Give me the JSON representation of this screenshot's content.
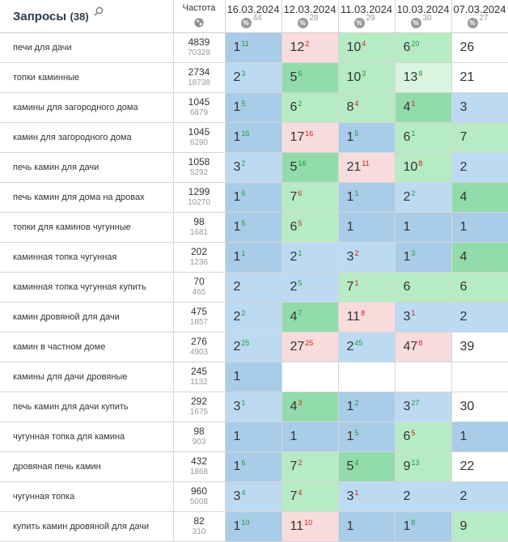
{
  "header": {
    "queries_title": "Запросы",
    "queries_count": "(38)",
    "freq_label": "Частота",
    "pct_symbol": "%"
  },
  "dates": [
    {
      "label": "16.03.2024",
      "count": "44"
    },
    {
      "label": "12.03.2024",
      "count": "28"
    },
    {
      "label": "11.03.2024",
      "count": "29"
    },
    {
      "label": "10.03.2024",
      "count": "30"
    },
    {
      "label": "07.03.2024",
      "count": "27"
    }
  ],
  "colors": {
    "pos_1": "#a9cce9",
    "pos_2_3": "#bcdaf2",
    "pos_4_5": "#91dcaa",
    "pos_6_10": "#b6ebc4",
    "pos_11_20": "#d9f5e0",
    "pos_worse": "#f8dcdc",
    "change_up": "#1e9b3c",
    "change_down": "#d4231b"
  },
  "rows": [
    {
      "query": "печи для дачи",
      "freq": "4839",
      "freq_exact": "70329",
      "cells": [
        {
          "pos": "1",
          "chg": "11",
          "dir": "up",
          "bg": "top1"
        },
        {
          "pos": "12",
          "chg": "2",
          "dir": "down",
          "bg": "out"
        },
        {
          "pos": "10",
          "chg": "4",
          "dir": "down",
          "bg": "top10"
        },
        {
          "pos": "6",
          "chg": "20",
          "dir": "up",
          "bg": "top10"
        },
        {
          "pos": "26",
          "chg": "",
          "dir": "",
          "bg": "none"
        }
      ]
    },
    {
      "query": "топки каминные",
      "freq": "2734",
      "freq_exact": "18738",
      "cells": [
        {
          "pos": "2",
          "chg": "3",
          "dir": "up",
          "bg": "top3"
        },
        {
          "pos": "5",
          "chg": "5",
          "dir": "up",
          "bg": "top5"
        },
        {
          "pos": "10",
          "chg": "3",
          "dir": "up",
          "bg": "top10"
        },
        {
          "pos": "13",
          "chg": "8",
          "dir": "up",
          "bg": "top20"
        },
        {
          "pos": "21",
          "chg": "",
          "dir": "",
          "bg": "none"
        }
      ]
    },
    {
      "query": "камины для загородного дома",
      "freq": "1045",
      "freq_exact": "6879",
      "cells": [
        {
          "pos": "1",
          "chg": "5",
          "dir": "up",
          "bg": "top1"
        },
        {
          "pos": "6",
          "chg": "2",
          "dir": "up",
          "bg": "top10"
        },
        {
          "pos": "8",
          "chg": "4",
          "dir": "down",
          "bg": "top10"
        },
        {
          "pos": "4",
          "chg": "1",
          "dir": "down",
          "bg": "top5"
        },
        {
          "pos": "3",
          "chg": "",
          "dir": "",
          "bg": "top3"
        }
      ]
    },
    {
      "query": "камин для загородного дома",
      "freq": "1045",
      "freq_exact": "6290",
      "cells": [
        {
          "pos": "1",
          "chg": "16",
          "dir": "up",
          "bg": "top1"
        },
        {
          "pos": "17",
          "chg": "16",
          "dir": "down",
          "bg": "out"
        },
        {
          "pos": "1",
          "chg": "5",
          "dir": "up",
          "bg": "top1"
        },
        {
          "pos": "6",
          "chg": "1",
          "dir": "up",
          "bg": "top10"
        },
        {
          "pos": "7",
          "chg": "",
          "dir": "",
          "bg": "top10"
        }
      ]
    },
    {
      "query": "печь камин для дачи",
      "freq": "1058",
      "freq_exact": "5292",
      "cells": [
        {
          "pos": "3",
          "chg": "2",
          "dir": "up",
          "bg": "top3"
        },
        {
          "pos": "5",
          "chg": "16",
          "dir": "up",
          "bg": "top5"
        },
        {
          "pos": "21",
          "chg": "11",
          "dir": "down",
          "bg": "out"
        },
        {
          "pos": "10",
          "chg": "8",
          "dir": "down",
          "bg": "top10"
        },
        {
          "pos": "2",
          "chg": "",
          "dir": "",
          "bg": "top3"
        }
      ]
    },
    {
      "query": "печь камин для дома на дровах",
      "freq": "1299",
      "freq_exact": "10270",
      "cells": [
        {
          "pos": "1",
          "chg": "6",
          "dir": "up",
          "bg": "top1"
        },
        {
          "pos": "7",
          "chg": "6",
          "dir": "down",
          "bg": "top10"
        },
        {
          "pos": "1",
          "chg": "1",
          "dir": "up",
          "bg": "top1"
        },
        {
          "pos": "2",
          "chg": "2",
          "dir": "up",
          "bg": "top3"
        },
        {
          "pos": "4",
          "chg": "",
          "dir": "",
          "bg": "top5"
        }
      ]
    },
    {
      "query": "топки для каминов чугунные",
      "freq": "98",
      "freq_exact": "1681",
      "cells": [
        {
          "pos": "1",
          "chg": "5",
          "dir": "up",
          "bg": "top1"
        },
        {
          "pos": "6",
          "chg": "5",
          "dir": "down",
          "bg": "top10"
        },
        {
          "pos": "1",
          "chg": "",
          "dir": "",
          "bg": "top1"
        },
        {
          "pos": "1",
          "chg": "",
          "dir": "",
          "bg": "top1"
        },
        {
          "pos": "1",
          "chg": "",
          "dir": "",
          "bg": "top1"
        }
      ]
    },
    {
      "query": "каминная топка чугунная",
      "freq": "202",
      "freq_exact": "1236",
      "cells": [
        {
          "pos": "1",
          "chg": "1",
          "dir": "up",
          "bg": "top1"
        },
        {
          "pos": "2",
          "chg": "1",
          "dir": "up",
          "bg": "top3"
        },
        {
          "pos": "3",
          "chg": "2",
          "dir": "down",
          "bg": "top3"
        },
        {
          "pos": "1",
          "chg": "3",
          "dir": "up",
          "bg": "top1"
        },
        {
          "pos": "4",
          "chg": "",
          "dir": "",
          "bg": "top5"
        }
      ]
    },
    {
      "query": "каминная топка чугунная купить",
      "freq": "70",
      "freq_exact": "465",
      "cells": [
        {
          "pos": "2",
          "chg": "",
          "dir": "",
          "bg": "top3"
        },
        {
          "pos": "2",
          "chg": "5",
          "dir": "up",
          "bg": "top3"
        },
        {
          "pos": "7",
          "chg": "1",
          "dir": "down",
          "bg": "top10"
        },
        {
          "pos": "6",
          "chg": "",
          "dir": "",
          "bg": "top10"
        },
        {
          "pos": "6",
          "chg": "",
          "dir": "",
          "bg": "top10"
        }
      ]
    },
    {
      "query": "камин дровяной для дачи",
      "freq": "475",
      "freq_exact": "1857",
      "cells": [
        {
          "pos": "2",
          "chg": "2",
          "dir": "up",
          "bg": "top3"
        },
        {
          "pos": "4",
          "chg": "7",
          "dir": "up",
          "bg": "top5"
        },
        {
          "pos": "11",
          "chg": "8",
          "dir": "down",
          "bg": "out"
        },
        {
          "pos": "3",
          "chg": "1",
          "dir": "down",
          "bg": "top3"
        },
        {
          "pos": "2",
          "chg": "",
          "dir": "",
          "bg": "top3"
        }
      ]
    },
    {
      "query": "камин в частном доме",
      "freq": "276",
      "freq_exact": "4903",
      "cells": [
        {
          "pos": "2",
          "chg": "25",
          "dir": "up",
          "bg": "top3"
        },
        {
          "pos": "27",
          "chg": "25",
          "dir": "down",
          "bg": "out"
        },
        {
          "pos": "2",
          "chg": "45",
          "dir": "up",
          "bg": "top3"
        },
        {
          "pos": "47",
          "chg": "8",
          "dir": "down",
          "bg": "out"
        },
        {
          "pos": "39",
          "chg": "",
          "dir": "",
          "bg": "none"
        }
      ]
    },
    {
      "query": "камины для дачи дровяные",
      "freq": "245",
      "freq_exact": "1132",
      "cells": [
        {
          "pos": "1",
          "chg": "",
          "dir": "",
          "bg": "top1"
        },
        {
          "pos": "",
          "chg": "",
          "dir": "",
          "bg": "none"
        },
        {
          "pos": "",
          "chg": "",
          "dir": "",
          "bg": "none"
        },
        {
          "pos": "",
          "chg": "",
          "dir": "",
          "bg": "none"
        },
        {
          "pos": "",
          "chg": "",
          "dir": "",
          "bg": "none"
        }
      ]
    },
    {
      "query": "печь камин для дачи купить",
      "freq": "292",
      "freq_exact": "1675",
      "cells": [
        {
          "pos": "3",
          "chg": "1",
          "dir": "up",
          "bg": "top3"
        },
        {
          "pos": "4",
          "chg": "3",
          "dir": "down",
          "bg": "top5"
        },
        {
          "pos": "1",
          "chg": "2",
          "dir": "up",
          "bg": "top1"
        },
        {
          "pos": "3",
          "chg": "27",
          "dir": "up",
          "bg": "top3"
        },
        {
          "pos": "30",
          "chg": "",
          "dir": "",
          "bg": "none"
        }
      ]
    },
    {
      "query": "чугунная топка для камина",
      "freq": "98",
      "freq_exact": "903",
      "cells": [
        {
          "pos": "1",
          "chg": "",
          "dir": "",
          "bg": "top1"
        },
        {
          "pos": "1",
          "chg": "",
          "dir": "",
          "bg": "top1"
        },
        {
          "pos": "1",
          "chg": "5",
          "dir": "up",
          "bg": "top1"
        },
        {
          "pos": "6",
          "chg": "5",
          "dir": "down",
          "bg": "top10"
        },
        {
          "pos": "1",
          "chg": "",
          "dir": "",
          "bg": "top1"
        }
      ]
    },
    {
      "query": "дровяная печь камин",
      "freq": "432",
      "freq_exact": "1868",
      "cells": [
        {
          "pos": "1",
          "chg": "6",
          "dir": "up",
          "bg": "top1"
        },
        {
          "pos": "7",
          "chg": "2",
          "dir": "down",
          "bg": "top10"
        },
        {
          "pos": "5",
          "chg": "4",
          "dir": "up",
          "bg": "top5"
        },
        {
          "pos": "9",
          "chg": "13",
          "dir": "up",
          "bg": "top10"
        },
        {
          "pos": "22",
          "chg": "",
          "dir": "",
          "bg": "none"
        }
      ]
    },
    {
      "query": "чугунная топка",
      "freq": "960",
      "freq_exact": "5008",
      "cells": [
        {
          "pos": "3",
          "chg": "4",
          "dir": "up",
          "bg": "top3"
        },
        {
          "pos": "7",
          "chg": "4",
          "dir": "down",
          "bg": "top10"
        },
        {
          "pos": "3",
          "chg": "1",
          "dir": "down",
          "bg": "top3"
        },
        {
          "pos": "2",
          "chg": "",
          "dir": "",
          "bg": "top3"
        },
        {
          "pos": "2",
          "chg": "",
          "dir": "",
          "bg": "top3"
        }
      ]
    },
    {
      "query": "купить камин дровяной для дачи",
      "freq": "82",
      "freq_exact": "310",
      "cells": [
        {
          "pos": "1",
          "chg": "10",
          "dir": "up",
          "bg": "top1"
        },
        {
          "pos": "11",
          "chg": "10",
          "dir": "down",
          "bg": "out"
        },
        {
          "pos": "1",
          "chg": "",
          "dir": "",
          "bg": "top1"
        },
        {
          "pos": "1",
          "chg": "8",
          "dir": "up",
          "bg": "top1"
        },
        {
          "pos": "9",
          "chg": "",
          "dir": "",
          "bg": "top10"
        }
      ]
    }
  ]
}
